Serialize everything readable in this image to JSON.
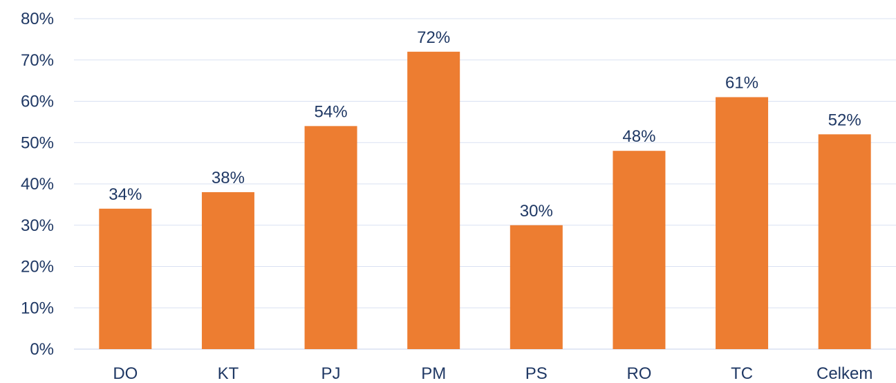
{
  "chart_data": {
    "type": "bar",
    "categories": [
      "DO",
      "KT",
      "PJ",
      "PM",
      "PS",
      "RO",
      "TC",
      "Celkem"
    ],
    "values": [
      34,
      38,
      54,
      72,
      30,
      48,
      61,
      52
    ],
    "data_labels": [
      "34%",
      "38%",
      "54%",
      "72%",
      "30%",
      "48%",
      "61%",
      "52%"
    ],
    "y_ticks": [
      0,
      10,
      20,
      30,
      40,
      50,
      60,
      70,
      80
    ],
    "y_tick_labels": [
      "0%",
      "10%",
      "20%",
      "30%",
      "40%",
      "50%",
      "60%",
      "70%",
      "80%"
    ],
    "ylim": [
      0,
      80
    ],
    "grid": true,
    "legend": "none",
    "colors": {
      "bar": "#ED7D31",
      "text": "#1F3864",
      "grid": "#D9E1F2"
    }
  }
}
